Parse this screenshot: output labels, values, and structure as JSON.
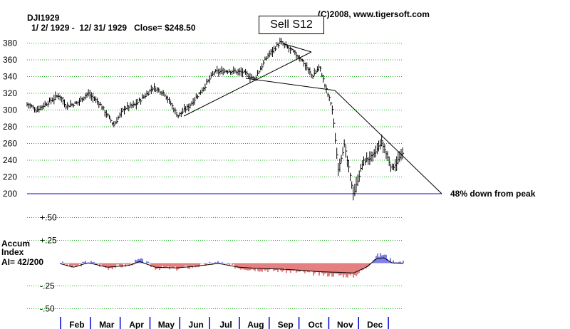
{
  "header": {
    "symbol": "DJI1929",
    "period": "1/ 2/ 1929 -  12/ 31/ 1929   Close= $248.50",
    "copyright": "(C)2008, www.tigersoft.com"
  },
  "signal": {
    "label": "Sell S12"
  },
  "price_panel": {
    "annotation": "48% down from peak",
    "y_ticks": [
      "200",
      "220",
      "240",
      "260",
      "280",
      "300",
      "320",
      "340",
      "360",
      "380"
    ]
  },
  "accum_panel": {
    "title_line1": "Accum",
    "title_line2": "Index",
    "title_line3": "AI= 42/200",
    "y_ticks": [
      "+.50",
      "+.25",
      "-.25",
      "-.50"
    ]
  },
  "months": [
    "Feb",
    "Mar",
    "Apr",
    "May",
    "Jun",
    "Jul",
    "Aug",
    "Sep",
    "Oct",
    "Nov",
    "Dec"
  ],
  "colors": {
    "grid": "#22aa22",
    "bars": "#000000",
    "baseline": "#0000cc",
    "accum_positive": "#0000cc",
    "accum_negative": "#cc0000"
  },
  "chart_data": [
    {
      "type": "line",
      "series": [
        {
          "values": [
            {
              "x": "1929-01-02",
              "y": 307
            },
            {
              "x": "1929-01-10",
              "y": 300
            },
            {
              "x": "1929-01-25",
              "y": 312
            },
            {
              "x": "1929-02-01",
              "y": 318
            },
            {
              "x": "1929-02-08",
              "y": 305
            },
            {
              "x": "1929-02-18",
              "y": 308
            },
            {
              "x": "1929-03-01",
              "y": 320
            },
            {
              "x": "1929-03-12",
              "y": 308
            },
            {
              "x": "1929-03-26",
              "y": 282
            },
            {
              "x": "1929-04-05",
              "y": 302
            },
            {
              "x": "1929-04-15",
              "y": 306
            },
            {
              "x": "1929-04-26",
              "y": 318
            },
            {
              "x": "1929-05-03",
              "y": 327
            },
            {
              "x": "1929-05-14",
              "y": 320
            },
            {
              "x": "1929-05-27",
              "y": 293
            },
            {
              "x": "1929-06-07",
              "y": 305
            },
            {
              "x": "1929-06-20",
              "y": 325
            },
            {
              "x": "1929-07-01",
              "y": 345
            },
            {
              "x": "1929-07-15",
              "y": 347
            },
            {
              "x": "1929-07-29",
              "y": 345
            },
            {
              "x": "1929-08-09",
              "y": 337
            },
            {
              "x": "1929-08-22",
              "y": 365
            },
            {
              "x": "1929-09-03",
              "y": 381
            },
            {
              "x": "1929-09-13",
              "y": 372
            },
            {
              "x": "1929-09-24",
              "y": 360
            },
            {
              "x": "1929-10-04",
              "y": 340
            },
            {
              "x": "1929-10-11",
              "y": 352
            },
            {
              "x": "1929-10-18",
              "y": 322
            },
            {
              "x": "1929-10-23",
              "y": 305
            },
            {
              "x": "1929-10-29",
              "y": 230
            },
            {
              "x": "1929-11-04",
              "y": 258
            },
            {
              "x": "1929-11-13",
              "y": 199
            },
            {
              "x": "1929-11-22",
              "y": 238
            },
            {
              "x": "1929-12-02",
              "y": 245
            },
            {
              "x": "1929-12-10",
              "y": 262
            },
            {
              "x": "1929-12-20",
              "y": 230
            },
            {
              "x": "1929-12-31",
              "y": 248.5
            }
          ]
        }
      ],
      "ylim": [
        200,
        390
      ]
    },
    {
      "type": "area",
      "series": [
        {
          "values": [
            {
              "x": "1929-01-02",
              "y": -0.02
            },
            {
              "x": "1929-02-01",
              "y": 0.01
            },
            {
              "x": "1929-02-15",
              "y": -0.05
            },
            {
              "x": "1929-03-01",
              "y": 0.02
            },
            {
              "x": "1929-03-20",
              "y": -0.05
            },
            {
              "x": "1929-04-10",
              "y": -0.02
            },
            {
              "x": "1929-04-20",
              "y": 0.04
            },
            {
              "x": "1929-05-05",
              "y": -0.05
            },
            {
              "x": "1929-05-25",
              "y": -0.06
            },
            {
              "x": "1929-06-10",
              "y": -0.04
            },
            {
              "x": "1929-07-05",
              "y": 0.01
            },
            {
              "x": "1929-07-25",
              "y": -0.05
            },
            {
              "x": "1929-08-15",
              "y": -0.07
            },
            {
              "x": "1929-09-05",
              "y": -0.08
            },
            {
              "x": "1929-09-25",
              "y": -0.1
            },
            {
              "x": "1929-10-10",
              "y": -0.12
            },
            {
              "x": "1929-10-30",
              "y": -0.13
            },
            {
              "x": "1929-11-13",
              "y": -0.14
            },
            {
              "x": "1929-11-25",
              "y": -0.05
            },
            {
              "x": "1929-12-05",
              "y": 0.08
            },
            {
              "x": "1929-12-12",
              "y": 0.1
            },
            {
              "x": "1929-12-20",
              "y": 0.02
            },
            {
              "x": "1929-12-31",
              "y": 0.01
            }
          ]
        }
      ],
      "ylim": [
        -0.5,
        0.5
      ]
    }
  ]
}
